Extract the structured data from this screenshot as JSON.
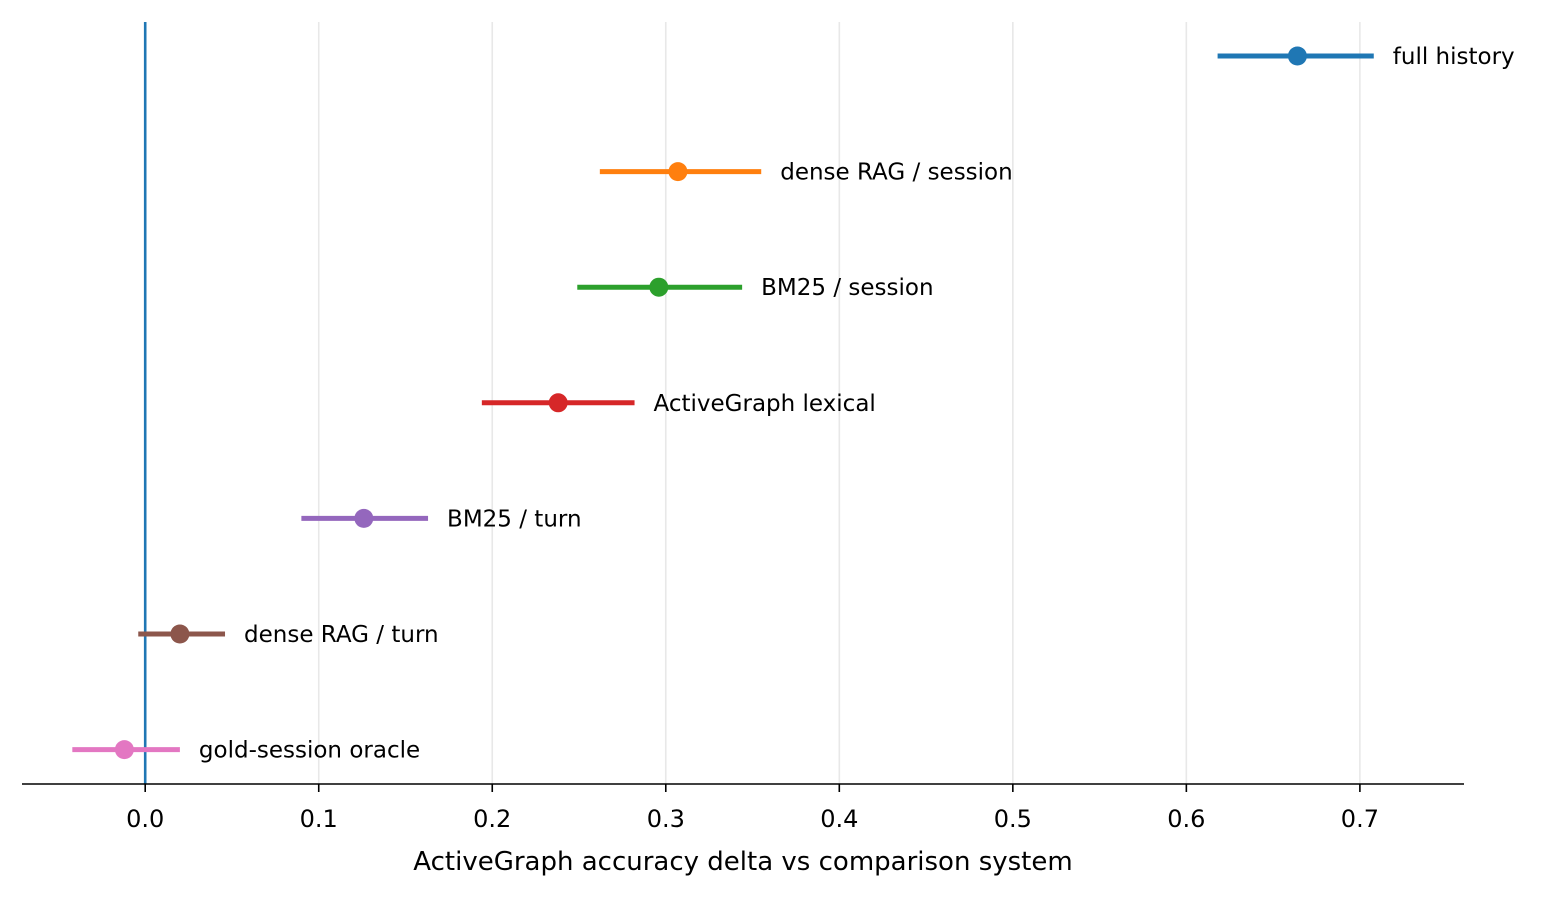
{
  "chart_data": {
    "type": "scatter",
    "title": "",
    "xlabel": "ActiveGraph accuracy delta vs comparison system",
    "ylabel": "",
    "xlim": [
      -0.071,
      0.76
    ],
    "xticks": [
      0.0,
      0.1,
      0.2,
      0.3,
      0.4,
      0.5,
      0.6,
      0.7
    ],
    "xtick_labels": [
      "0.0",
      "0.1",
      "0.2",
      "0.3",
      "0.4",
      "0.5",
      "0.6",
      "0.7"
    ],
    "grid": "vertical",
    "reference_line": {
      "x": 0.0,
      "color": "#1f77b4"
    },
    "series": [
      {
        "name": "full history",
        "value": 0.664,
        "ci_low": 0.618,
        "ci_high": 0.708,
        "color": "#1f77b4"
      },
      {
        "name": "dense RAG / session",
        "value": 0.307,
        "ci_low": 0.262,
        "ci_high": 0.355,
        "color": "#ff7f0e"
      },
      {
        "name": "BM25 / session",
        "value": 0.296,
        "ci_low": 0.249,
        "ci_high": 0.344,
        "color": "#2ca02c"
      },
      {
        "name": "ActiveGraph lexical",
        "value": 0.238,
        "ci_low": 0.194,
        "ci_high": 0.282,
        "color": "#d62728"
      },
      {
        "name": "BM25 / turn",
        "value": 0.126,
        "ci_low": 0.09,
        "ci_high": 0.163,
        "color": "#9467bd"
      },
      {
        "name": "dense RAG / turn",
        "value": 0.02,
        "ci_low": -0.004,
        "ci_high": 0.046,
        "color": "#8c564b"
      },
      {
        "name": "gold-session oracle",
        "value": -0.012,
        "ci_low": -0.042,
        "ci_high": 0.02,
        "color": "#e377c2"
      }
    ]
  }
}
